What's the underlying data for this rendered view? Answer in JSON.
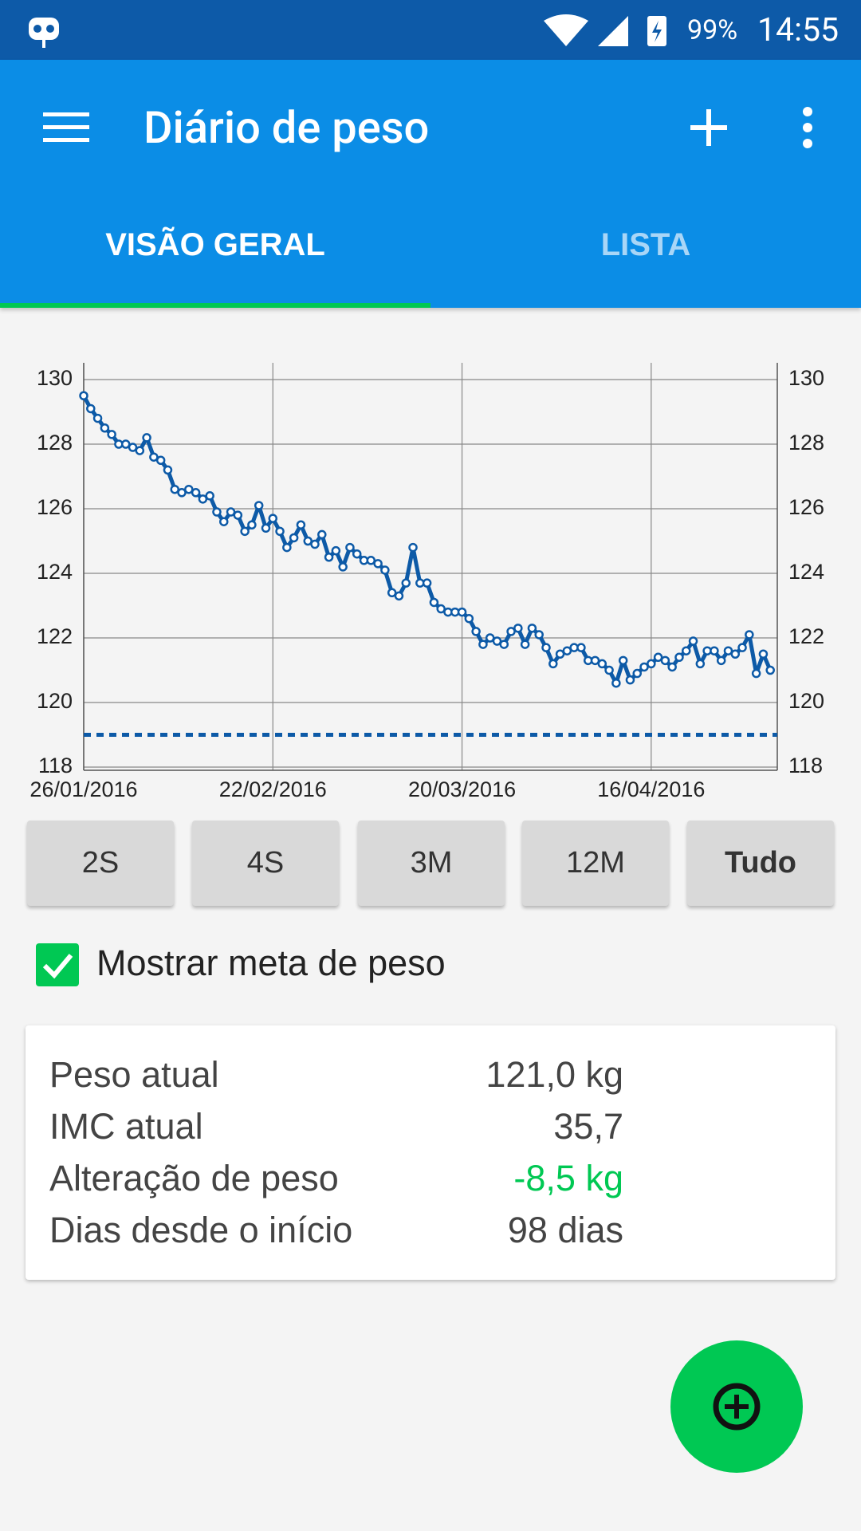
{
  "status_bar": {
    "battery": "99%",
    "time": "14:55"
  },
  "app_bar": {
    "title": "Diário de peso"
  },
  "tabs": [
    "VISÃO GERAL",
    "LISTA"
  ],
  "chart_data": {
    "type": "line",
    "x": [
      "26/01/2016",
      "27/01/2016",
      "28/01/2016",
      "29/01/2016",
      "30/01/2016",
      "31/01/2016",
      "01/02/2016",
      "02/02/2016",
      "03/02/2016",
      "04/02/2016",
      "05/02/2016",
      "06/02/2016",
      "07/02/2016",
      "08/02/2016",
      "09/02/2016",
      "10/02/2016",
      "11/02/2016",
      "12/02/2016",
      "13/02/2016",
      "14/02/2016",
      "15/02/2016",
      "16/02/2016",
      "17/02/2016",
      "18/02/2016",
      "19/02/2016",
      "20/02/2016",
      "21/02/2016",
      "22/02/2016",
      "23/02/2016",
      "24/02/2016",
      "25/02/2016",
      "26/02/2016",
      "27/02/2016",
      "28/02/2016",
      "29/02/2016",
      "01/03/2016",
      "02/03/2016",
      "03/03/2016",
      "04/03/2016",
      "05/03/2016",
      "06/03/2016",
      "07/03/2016",
      "08/03/2016",
      "09/03/2016",
      "10/03/2016",
      "11/03/2016",
      "12/03/2016",
      "13/03/2016",
      "14/03/2016",
      "15/03/2016",
      "16/03/2016",
      "17/03/2016",
      "18/03/2016",
      "19/03/2016",
      "20/03/2016",
      "21/03/2016",
      "22/03/2016",
      "23/03/2016",
      "24/03/2016",
      "25/03/2016",
      "26/03/2016",
      "27/03/2016",
      "28/03/2016",
      "29/03/2016",
      "30/03/2016",
      "31/03/2016",
      "01/04/2016",
      "02/04/2016",
      "03/04/2016",
      "04/04/2016",
      "05/04/2016",
      "06/04/2016",
      "07/04/2016",
      "08/04/2016",
      "09/04/2016",
      "10/04/2016",
      "11/04/2016",
      "12/04/2016",
      "13/04/2016",
      "14/04/2016",
      "15/04/2016",
      "16/04/2016",
      "17/04/2016",
      "18/04/2016",
      "19/04/2016",
      "20/04/2016",
      "21/04/2016",
      "22/04/2016",
      "23/04/2016",
      "24/04/2016",
      "25/04/2016",
      "26/04/2016",
      "27/04/2016",
      "28/04/2016",
      "29/04/2016",
      "30/04/2016",
      "01/05/2016",
      "02/05/2016",
      "03/05/2016"
    ],
    "series": [
      {
        "color": "#0d5aa7",
        "values": [
          129.5,
          129.1,
          128.8,
          128.5,
          128.3,
          128.0,
          128.0,
          127.9,
          127.8,
          128.2,
          127.6,
          127.5,
          127.2,
          126.6,
          126.5,
          126.6,
          126.5,
          126.3,
          126.4,
          125.9,
          125.6,
          125.9,
          125.8,
          125.3,
          125.5,
          126.1,
          125.4,
          125.7,
          125.3,
          124.8,
          125.1,
          125.5,
          125.0,
          124.9,
          125.2,
          124.5,
          124.7,
          124.2,
          124.8,
          124.6,
          124.4,
          124.4,
          124.3,
          124.1,
          123.4,
          123.3,
          123.7,
          124.8,
          123.7,
          123.7,
          123.1,
          122.9,
          122.8,
          122.8,
          122.8,
          122.6,
          122.2,
          121.8,
          122.0,
          121.9,
          121.8,
          122.2,
          122.3,
          121.8,
          122.3,
          122.1,
          121.7,
          121.2,
          121.5,
          121.6,
          121.7,
          121.7,
          121.3,
          121.3,
          121.2,
          121.0,
          120.6,
          121.3,
          120.7,
          120.9,
          121.1,
          121.2,
          121.4,
          121.3,
          121.1,
          121.4,
          121.6,
          121.9,
          121.2,
          121.6,
          121.6,
          121.3,
          121.6,
          121.5,
          121.7,
          122.1,
          120.9,
          121.5,
          121.0
        ]
      }
    ],
    "xlim": [
      "26/01/2016",
      "04/05/2016"
    ],
    "xticks": [
      "26/01/2016",
      "22/02/2016",
      "20/03/2016",
      "16/04/2016"
    ],
    "ylim": [
      118,
      130
    ],
    "yticks": [
      118,
      120,
      122,
      124,
      126,
      128,
      130
    ],
    "y2lim": [
      118,
      130
    ],
    "y2ticks": [
      118,
      120,
      122,
      124,
      126,
      128,
      130
    ],
    "grid": true,
    "goal_line": {
      "value": 119,
      "color": "#0d5aa7",
      "style": "dashed"
    }
  },
  "range_buttons": [
    "2S",
    "4S",
    "3M",
    "12M",
    "Tudo"
  ],
  "selected_range": 4,
  "goal_checkbox": {
    "label": "Mostrar meta de peso",
    "checked": true
  },
  "stats": [
    {
      "label": "Peso atual",
      "value": "121,0 kg"
    },
    {
      "label": "IMC atual",
      "value": "35,7"
    },
    {
      "label": "Alteração de peso",
      "value": "-8,5 kg",
      "color": "#00c853"
    },
    {
      "label": "Dias desde o início",
      "value": "98 dias"
    }
  ]
}
